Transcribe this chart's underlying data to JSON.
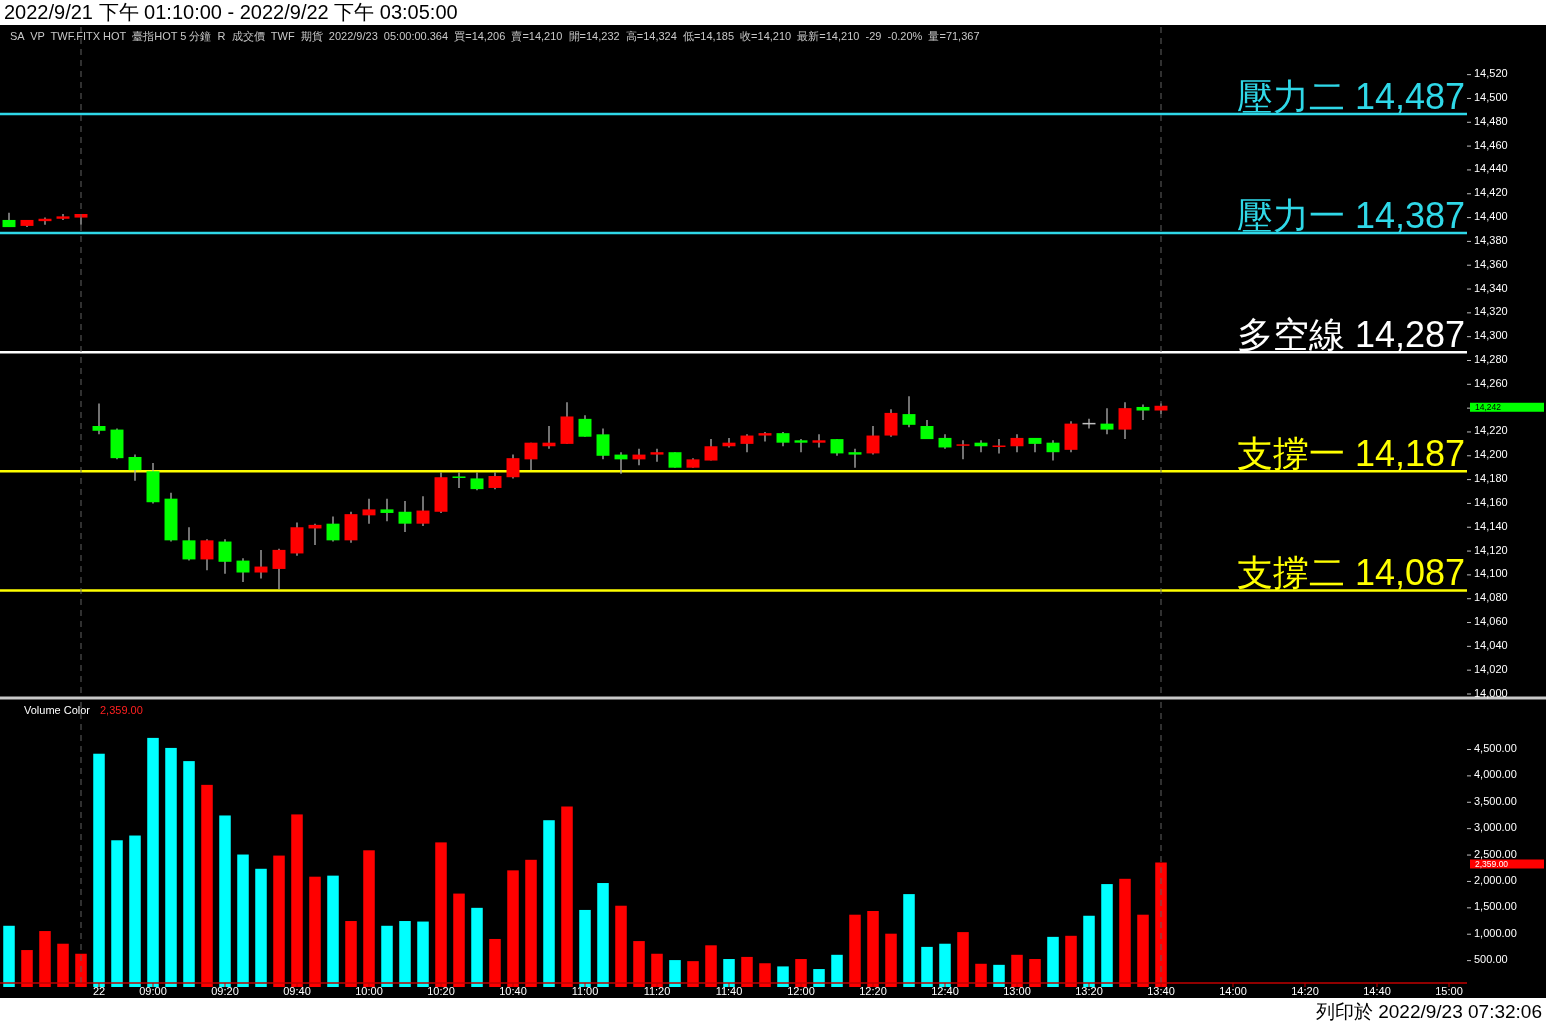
{
  "chart_data": [
    {
      "type": "candlestick",
      "title": "2022/9/21 下午 01:10:00 - 2022/9/22 下午 03:05:00",
      "subtitle": "SA  VP  TWF.FITX HOT  臺指HOT 5 分鐘  R  成交價  TWF  期貨  2022/9/23  05:00:00.364  買=14,206  賣=14,210  開=14,232  高=14,324  低=14,185  收=14,210  最新=14,210  -29  -0.20%  量=71,367",
      "annotations": [
        "14,242"
      ],
      "categories": [
        null,
        null,
        null,
        null,
        null,
        null,
        null,
        null,
        null,
        null,
        null,
        null,
        null,
        null,
        null,
        null,
        null,
        null,
        null,
        null,
        null,
        null,
        null,
        null,
        null,
        null,
        null,
        null,
        null,
        null,
        null,
        null,
        null,
        null,
        null,
        null,
        null,
        null,
        null,
        null,
        null,
        null,
        null,
        null,
        null,
        null,
        null,
        null,
        null,
        null,
        null,
        null,
        null,
        null,
        null,
        null,
        null,
        null,
        null,
        null,
        null,
        null,
        null,
        null,
        null,
        null,
        null,
        null,
        null,
        null,
        null,
        null,
        null,
        null,
        null,
        null,
        null,
        null,
        null,
        null,
        null
      ],
      "ohlc": [
        [
          14398,
          14404,
          14392,
          14392
        ],
        [
          14393,
          14398,
          14392,
          14398
        ],
        [
          14397,
          14400,
          14394,
          14399
        ],
        [
          14399,
          14403,
          14398,
          14401
        ],
        [
          14400,
          14403,
          14394,
          14403
        ],
        [
          14225,
          14244,
          14218,
          14221
        ],
        [
          14222,
          14223,
          14197,
          14198
        ],
        [
          14199,
          14201,
          14179,
          14188
        ],
        [
          14187,
          14194,
          14160,
          14161
        ],
        [
          14164,
          14169,
          14128,
          14129
        ],
        [
          14129,
          14140,
          14112,
          14113
        ],
        [
          14113,
          14130,
          14104,
          14129
        ],
        [
          14128,
          14130,
          14101,
          14111
        ],
        [
          14112,
          14114,
          14094,
          14102
        ],
        [
          14102,
          14121,
          14097,
          14107
        ],
        [
          14105,
          14122,
          14088,
          14121
        ],
        [
          14118,
          14144,
          14116,
          14140
        ],
        [
          14139,
          14143,
          14125,
          14142
        ],
        [
          14143,
          14149,
          14128,
          14129
        ],
        [
          14129,
          14153,
          14127,
          14151
        ],
        [
          14150,
          14164,
          14143,
          14155
        ],
        [
          14155,
          14164,
          14145,
          14152
        ],
        [
          14153,
          14162,
          14136,
          14143
        ],
        [
          14143,
          14166,
          14141,
          14154
        ],
        [
          14153,
          14186,
          14152,
          14182
        ],
        [
          14182,
          14186,
          14173,
          14181
        ],
        [
          14181,
          14186,
          14171,
          14172
        ],
        [
          14173,
          14186,
          14172,
          14183
        ],
        [
          14182,
          14201,
          14181,
          14198
        ],
        [
          14197,
          14211,
          14188,
          14211
        ],
        [
          14208,
          14225,
          14206,
          14211
        ],
        [
          14210,
          14245,
          14210,
          14233
        ],
        [
          14231,
          14234,
          14216,
          14216
        ],
        [
          14218,
          14223,
          14197,
          14200
        ],
        [
          14201,
          14203,
          14185,
          14197
        ],
        [
          14197,
          14206,
          14192,
          14201
        ],
        [
          14201,
          14206,
          14195,
          14203
        ],
        [
          14203,
          14203,
          14190,
          14190
        ],
        [
          14190,
          14198,
          14190,
          14197
        ],
        [
          14196,
          14214,
          14196,
          14208
        ],
        [
          14208,
          14215,
          14207,
          14211
        ],
        [
          14210,
          14218,
          14203,
          14217
        ],
        [
          14217,
          14220,
          14212,
          14219
        ],
        [
          14219,
          14220,
          14208,
          14211
        ],
        [
          14213,
          14214,
          14203,
          14211
        ],
        [
          14211,
          14218,
          14207,
          14213
        ],
        [
          14214,
          14214,
          14200,
          14202
        ],
        [
          14203,
          14206,
          14190,
          14201
        ],
        [
          14202,
          14225,
          14201,
          14217
        ],
        [
          14217,
          14239,
          14216,
          14236
        ],
        [
          14235,
          14250,
          14224,
          14226
        ],
        [
          14225,
          14230,
          14214,
          14214
        ],
        [
          14215,
          14218,
          14206,
          14207
        ],
        [
          14208,
          14213,
          14197,
          14209
        ],
        [
          14211,
          14213,
          14203,
          14208
        ],
        [
          14207,
          14214,
          14202,
          14208
        ],
        [
          14208,
          14218,
          14203,
          14215
        ],
        [
          14215,
          14215,
          14203,
          14210
        ],
        [
          14211,
          14213,
          14196,
          14203
        ],
        [
          14205,
          14229,
          14203,
          14227
        ],
        [
          14227,
          14231,
          14223,
          14227
        ],
        [
          14227,
          14240,
          14218,
          14222
        ],
        [
          14222,
          14245,
          14214,
          14240
        ],
        [
          14241,
          14243,
          14230,
          14238
        ],
        [
          14238,
          14244,
          14235,
          14242
        ],
        null,
        null,
        null,
        null,
        null,
        null,
        null,
        null,
        null,
        null,
        null,
        null,
        null,
        null,
        null,
        null
      ],
      "colors": [
        "#00ff00",
        "#ff0000",
        "#ff0000",
        "#ff0000",
        "#ff0000",
        "#00ff00",
        "#00ff00",
        "#00ff00",
        "#00ff00",
        "#00ff00",
        "#00ff00",
        "#ff0000",
        "#00ff00",
        "#00ff00",
        "#ff0000",
        "#ff0000",
        "#ff0000",
        "#ff0000",
        "#00ff00",
        "#ff0000",
        "#ff0000",
        "#00ff00",
        "#00ff00",
        "#ff0000",
        "#ff0000",
        "#00ff00",
        "#00ff00",
        "#ff0000",
        "#ff0000",
        "#ff0000",
        "#ff0000",
        "#ff0000",
        "#00ff00",
        "#00ff00",
        "#00ff00",
        "#ff0000",
        "#ff0000",
        "#00ff00",
        "#ff0000",
        "#ff0000",
        "#ff0000",
        "#ff0000",
        "#ff0000",
        "#00ff00",
        "#00ff00",
        "#ff0000",
        "#00ff00",
        "#00ff00",
        "#ff0000",
        "#ff0000",
        "#00ff00",
        "#00ff00",
        "#00ff00",
        "#ff0000",
        "#00ff00",
        "#ff0000",
        "#ff0000",
        "#00ff00",
        "#00ff00",
        "#ff0000",
        "#c0c0c0",
        "#00ff00",
        "#ff0000",
        "#00ff00",
        "#ff0000",
        null,
        null,
        null,
        null,
        null,
        null,
        null,
        null,
        null,
        null,
        null,
        null,
        null,
        null,
        null,
        null
      ],
      "ylim": [
        14000,
        14560
      ],
      "yticks": [
        {
          "value": 14000,
          "label": "14,000"
        },
        {
          "value": 14020,
          "label": "14,020"
        },
        {
          "value": 14040,
          "label": "14,040"
        },
        {
          "value": 14060,
          "label": "14,060"
        },
        {
          "value": 14080,
          "label": "14,080"
        },
        {
          "value": 14100,
          "label": "14,100"
        },
        {
          "value": 14120,
          "label": "14,120"
        },
        {
          "value": 14140,
          "label": "14,140"
        },
        {
          "value": 14160,
          "label": "14,160"
        },
        {
          "value": 14180,
          "label": "14,180"
        },
        {
          "value": 14200,
          "label": "14,200"
        },
        {
          "value": 14220,
          "label": "14,220"
        },
        {
          "value": 14240,
          "label": null
        },
        {
          "value": 14260,
          "label": "14,260"
        },
        {
          "value": 14280,
          "label": "14,280"
        },
        {
          "value": 14300,
          "label": "14,300"
        },
        {
          "value": 14320,
          "label": "14,320"
        },
        {
          "value": 14340,
          "label": "14,340"
        },
        {
          "value": 14360,
          "label": "14,360"
        },
        {
          "value": 14380,
          "label": "14,380"
        },
        {
          "value": 14400,
          "label": "14,400"
        },
        {
          "value": 14420,
          "label": "14,420"
        },
        {
          "value": 14440,
          "label": "14,440"
        },
        {
          "value": 14460,
          "label": "14,460"
        },
        {
          "value": 14480,
          "label": "14,480"
        },
        {
          "value": 14500,
          "label": "14,500"
        },
        {
          "value": 14520,
          "label": "14,520"
        }
      ],
      "tick_labels": "y",
      "ref_lines": [
        {
          "axis": "y",
          "value": 14487,
          "label": "壓力二 14,487",
          "color": "#2fd8e8",
          "line_style": "solid"
        },
        {
          "axis": "y",
          "value": 14387,
          "label": "壓力一 14,387",
          "color": "#2fd8e8",
          "line_style": "solid"
        },
        {
          "axis": "y",
          "value": 14287,
          "label": "多空線 14,287",
          "color": "#ffffff",
          "line_style": "solid"
        },
        {
          "axis": "y",
          "value": 14187,
          "label": "支撐一 14,187",
          "color": "#ffff00",
          "line_style": "solid"
        },
        {
          "axis": "y",
          "value": 14087,
          "label": "支撐二 14,087",
          "color": "#ffff00",
          "line_style": "solid"
        }
      ]
    },
    {
      "type": "bar",
      "title": "Volume Color",
      "subtitle": "2,359.00",
      "annotations": [
        "2,359.00",
        "列印於 2022/9/23 07:32:06"
      ],
      "categories": [
        null,
        null,
        null,
        null,
        null,
        "22",
        null,
        null,
        "09:00",
        null,
        null,
        null,
        "09:20",
        null,
        null,
        null,
        "09:40",
        null,
        null,
        null,
        "10:00",
        null,
        null,
        null,
        "10:20",
        null,
        null,
        null,
        "10:40",
        null,
        null,
        null,
        "11:00",
        null,
        null,
        null,
        "11:20",
        null,
        null,
        null,
        "11:40",
        null,
        null,
        null,
        "12:00",
        null,
        null,
        null,
        "12:20",
        null,
        null,
        null,
        "12:40",
        null,
        null,
        null,
        "13:00",
        null,
        null,
        null,
        "13:20",
        null,
        null,
        null,
        "13:40",
        null,
        null,
        null,
        "14:00",
        null,
        null,
        null,
        "14:20",
        null,
        null,
        null,
        "14:40",
        null,
        null,
        null,
        "15:00"
      ],
      "values": [
        1160,
        700,
        1060,
        820,
        630,
        4420,
        2780,
        2870,
        4720,
        4530,
        4280,
        3830,
        3250,
        2510,
        2240,
        2490,
        3270,
        2090,
        2110,
        1250,
        2590,
        1160,
        1250,
        1240,
        2740,
        1770,
        1500,
        910,
        2210,
        2410,
        3160,
        3420,
        1460,
        1970,
        1540,
        870,
        630,
        510,
        490,
        790,
        530,
        570,
        450,
        390,
        530,
        340,
        610,
        1370,
        1440,
        1010,
        1760,
        760,
        820,
        1040,
        440,
        420,
        610,
        530,
        950,
        970,
        1350,
        1950,
        2050,
        1370,
        2359,
        null,
        null,
        null,
        null,
        null,
        null,
        null,
        null,
        null,
        null,
        null,
        null,
        null,
        null,
        null,
        null
      ],
      "colors": [
        "#00ffff",
        "#ff0000",
        "#ff0000",
        "#ff0000",
        "#ff0000",
        "#00ffff",
        "#00ffff",
        "#00ffff",
        "#00ffff",
        "#00ffff",
        "#00ffff",
        "#ff0000",
        "#00ffff",
        "#00ffff",
        "#00ffff",
        "#ff0000",
        "#ff0000",
        "#ff0000",
        "#00ffff",
        "#ff0000",
        "#ff0000",
        "#00ffff",
        "#00ffff",
        "#00ffff",
        "#ff0000",
        "#ff0000",
        "#00ffff",
        "#ff0000",
        "#ff0000",
        "#ff0000",
        "#00ffff",
        "#ff0000",
        "#00ffff",
        "#00ffff",
        "#ff0000",
        "#ff0000",
        "#ff0000",
        "#00ffff",
        "#ff0000",
        "#ff0000",
        "#00ffff",
        "#ff0000",
        "#ff0000",
        "#00ffff",
        "#ff0000",
        "#00ffff",
        "#00ffff",
        "#ff0000",
        "#ff0000",
        "#ff0000",
        "#00ffff",
        "#00ffff",
        "#00ffff",
        "#ff0000",
        "#ff0000",
        "#00ffff",
        "#ff0000",
        "#ff0000",
        "#00ffff",
        "#ff0000",
        "#00ffff",
        "#00ffff",
        "#ff0000",
        "#ff0000",
        "#ff0000",
        null,
        null,
        null,
        null,
        null,
        null,
        null,
        null,
        null,
        null,
        null,
        null,
        null,
        null,
        null,
        null
      ],
      "ylim": [
        0,
        5400
      ],
      "yticks": [
        {
          "value": 500,
          "label": "500.00"
        },
        {
          "value": 1000,
          "label": "1,000.00"
        },
        {
          "value": 1500,
          "label": "1,500.00"
        },
        {
          "value": 2000,
          "label": "2,000.00"
        },
        {
          "value": 2500,
          "label": "2,500.00"
        },
        {
          "value": 3000,
          "label": "3,000.00"
        },
        {
          "value": 3500,
          "label": "3,500.00"
        },
        {
          "value": 4000,
          "label": "4,000.00"
        },
        {
          "value": 4500,
          "label": "4,500.00"
        }
      ]
    }
  ]
}
